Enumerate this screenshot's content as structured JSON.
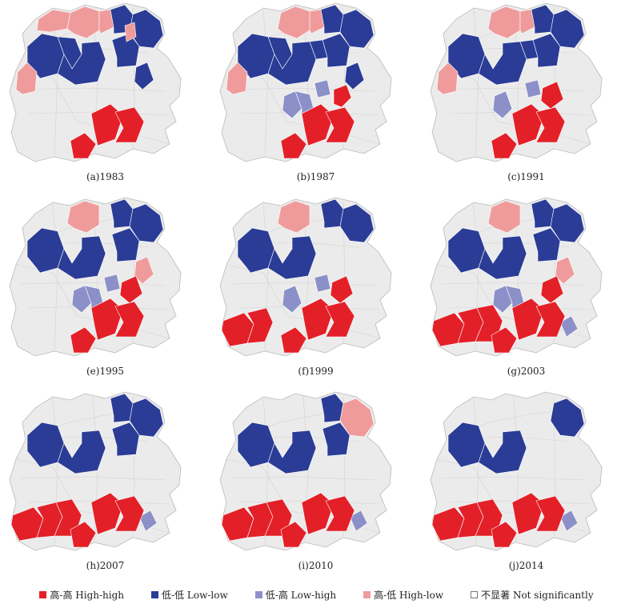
{
  "colors": {
    "not_significant": "#ebebeb",
    "outline": "#b9b9b9",
    "High-high": "#e32028",
    "Low-low": "#2a3c96",
    "Low-high": "#8b90c8",
    "High-low": "#f09b9b"
  },
  "panels": [
    {
      "label": "(a)1983",
      "clusters": [
        {
          "type": "High-low",
          "regions": [
            "n3",
            "n4",
            "n2"
          ]
        },
        {
          "type": "Low-low",
          "regions": [
            "n5",
            "n6",
            "c7",
            "c8",
            "c9",
            "e2",
            "e3"
          ]
        },
        {
          "type": "High-low",
          "regions": [
            "e1",
            "w1"
          ]
        },
        {
          "type": "High-high",
          "regions": [
            "s7",
            "s8",
            "s6"
          ]
        }
      ]
    },
    {
      "label": "(b)1987",
      "clusters": [
        {
          "type": "High-low",
          "regions": [
            "n4",
            "n3"
          ]
        },
        {
          "type": "Low-low",
          "regions": [
            "n5",
            "n6",
            "c7",
            "c8",
            "c9",
            "e2",
            "e3",
            "c10"
          ]
        },
        {
          "type": "High-low",
          "regions": [
            "w1"
          ]
        },
        {
          "type": "Low-high",
          "regions": [
            "c11",
            "s4",
            "s5"
          ]
        },
        {
          "type": "High-high",
          "regions": [
            "s6",
            "s7",
            "s8",
            "s9"
          ]
        }
      ]
    },
    {
      "label": "(c)1991",
      "clusters": [
        {
          "type": "High-low",
          "regions": [
            "n3",
            "n4"
          ]
        },
        {
          "type": "Low-low",
          "regions": [
            "n5",
            "n6",
            "c7",
            "c9",
            "e2",
            "c10"
          ]
        },
        {
          "type": "High-low",
          "regions": [
            "w1"
          ]
        },
        {
          "type": "Low-high",
          "regions": [
            "c11",
            "s4"
          ]
        },
        {
          "type": "High-high",
          "regions": [
            "s6",
            "s7",
            "s8",
            "s9",
            "e4"
          ]
        }
      ]
    },
    {
      "label": "(e)1995",
      "clusters": [
        {
          "type": "High-low",
          "regions": [
            "n3"
          ]
        },
        {
          "type": "Low-low",
          "regions": [
            "n5",
            "n6",
            "c7",
            "c9",
            "e2"
          ]
        },
        {
          "type": "High-low",
          "regions": [
            "e3"
          ]
        },
        {
          "type": "Low-high",
          "regions": [
            "s4",
            "s5",
            "c11"
          ]
        },
        {
          "type": "High-high",
          "regions": [
            "s6",
            "s7",
            "s8",
            "e4"
          ]
        }
      ]
    },
    {
      "label": "(f)1999",
      "clusters": [
        {
          "type": "High-low",
          "regions": [
            "n3"
          ]
        },
        {
          "type": "Low-low",
          "regions": [
            "n5",
            "n6",
            "c7",
            "c9"
          ]
        },
        {
          "type": "Low-high",
          "regions": [
            "s4",
            "c11"
          ]
        },
        {
          "type": "High-high",
          "regions": [
            "s1",
            "s2",
            "s6",
            "s7",
            "s8",
            "e4"
          ]
        }
      ]
    },
    {
      "label": "(g)2003",
      "clusters": [
        {
          "type": "High-low",
          "regions": [
            "n3",
            "e3"
          ]
        },
        {
          "type": "Low-low",
          "regions": [
            "n5",
            "n6",
            "c7",
            "c9",
            "e2"
          ]
        },
        {
          "type": "Low-high",
          "regions": [
            "s4",
            "s5",
            "e5"
          ]
        },
        {
          "type": "High-high",
          "regions": [
            "s1",
            "s2",
            "s3",
            "s6",
            "s7",
            "s8",
            "e4"
          ]
        }
      ]
    },
    {
      "label": "(h)2007",
      "clusters": [
        {
          "type": "Low-low",
          "regions": [
            "n5",
            "n6",
            "c7",
            "c9",
            "e2"
          ]
        },
        {
          "type": "Low-high",
          "regions": [
            "e5"
          ]
        },
        {
          "type": "High-high",
          "regions": [
            "s1",
            "s2",
            "s3",
            "s6",
            "s7",
            "s8"
          ]
        }
      ]
    },
    {
      "label": "(i)2010",
      "clusters": [
        {
          "type": "Low-low",
          "regions": [
            "n5",
            "n6",
            "c7",
            "c9",
            "e2"
          ]
        },
        {
          "type": "High-low",
          "regions": [
            "n6"
          ]
        },
        {
          "type": "Low-high",
          "regions": [
            "e5"
          ]
        },
        {
          "type": "High-high",
          "regions": [
            "s1",
            "s2",
            "s3",
            "s6",
            "s7",
            "s8"
          ]
        }
      ]
    },
    {
      "label": "(j)2014",
      "clusters": [
        {
          "type": "Low-low",
          "regions": [
            "n6",
            "c7",
            "c9"
          ]
        },
        {
          "type": "Low-high",
          "regions": [
            "e5"
          ]
        },
        {
          "type": "High-high",
          "regions": [
            "s1",
            "s2",
            "s3",
            "s6",
            "s7",
            "s8"
          ]
        }
      ]
    }
  ],
  "legend": [
    {
      "type": "High-high",
      "label": "高-高 High-high"
    },
    {
      "type": "Low-low",
      "label": "低-低 Low-low"
    },
    {
      "type": "Low-high",
      "label": "低-高 Low-high"
    },
    {
      "type": "High-low",
      "label": "高-低 High-low"
    },
    {
      "type": "not_significant",
      "label": "不显著 Not significantly"
    }
  ]
}
